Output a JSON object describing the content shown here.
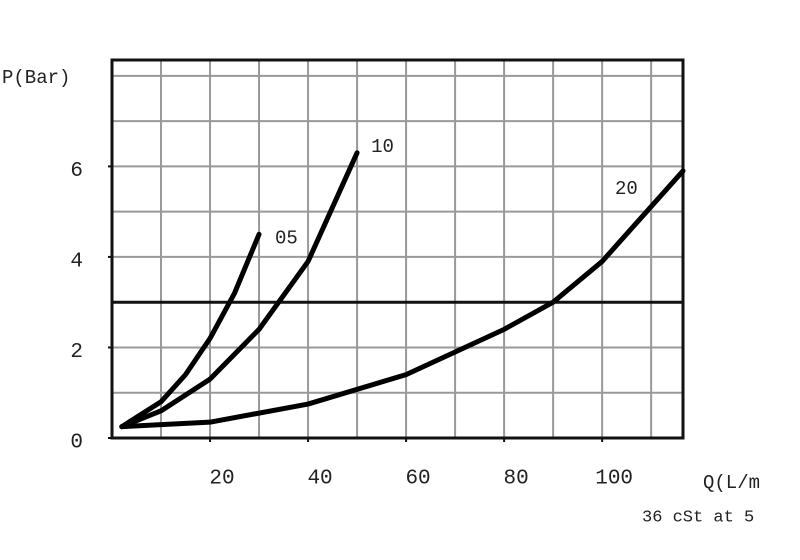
{
  "chart_data": {
    "type": "line",
    "y_label": "P(Bar)",
    "x_label": "Q(L/m",
    "note": "36 cSt at 5",
    "xlim": [
      0,
      116.5
    ],
    "ylim": [
      0,
      8.35
    ],
    "xticks": [
      20,
      40,
      60,
      80,
      100
    ],
    "yticks": [
      0,
      2,
      4,
      6
    ],
    "xgrid": [
      10,
      20,
      30,
      40,
      50,
      60,
      70,
      80,
      90,
      100,
      110
    ],
    "ygrid": [
      1,
      2,
      3,
      4,
      5,
      6,
      7,
      8
    ],
    "hline": 3,
    "series": [
      {
        "name": "05",
        "color": "#000000",
        "x": [
          2,
          10,
          15,
          20,
          25,
          30
        ],
        "values": [
          0.25,
          0.8,
          1.4,
          2.2,
          3.2,
          4.5
        ]
      },
      {
        "name": "10",
        "color": "#000000",
        "x": [
          2,
          10,
          20,
          30,
          40,
          50
        ],
        "values": [
          0.25,
          0.6,
          1.3,
          2.4,
          3.9,
          6.3
        ]
      },
      {
        "name": "20",
        "color": "#000000",
        "x": [
          2,
          20,
          40,
          60,
          80,
          90,
          100,
          116.5
        ],
        "values": [
          0.25,
          0.35,
          0.75,
          1.4,
          2.4,
          3.0,
          3.9,
          5.9
        ]
      }
    ]
  }
}
